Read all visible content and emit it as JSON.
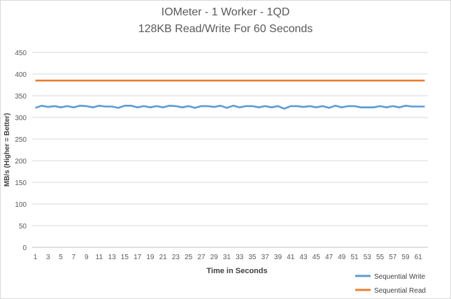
{
  "chart_data": {
    "type": "line",
    "title": "IOMeter - 1 Worker - 1QD",
    "subtitle": "128KB Read/Write For 60 Seconds",
    "xlabel": "Time in Seconds",
    "ylabel": "MB/s (Higher = Better)",
    "ylim": [
      0,
      450
    ],
    "ytick_step": 50,
    "y_ticks": [
      "0",
      "50",
      "100",
      "150",
      "200",
      "250",
      "300",
      "350",
      "400",
      "450"
    ],
    "x_ticks": [
      "1",
      "3",
      "5",
      "7",
      "9",
      "11",
      "13",
      "15",
      "17",
      "19",
      "21",
      "23",
      "25",
      "27",
      "29",
      "31",
      "33",
      "35",
      "37",
      "39",
      "41",
      "43",
      "45",
      "47",
      "49",
      "51",
      "53",
      "55",
      "57",
      "59",
      "61"
    ],
    "grid": true,
    "legend_position": "bottom-right",
    "x": [
      1,
      2,
      3,
      4,
      5,
      6,
      7,
      8,
      9,
      10,
      11,
      12,
      13,
      14,
      15,
      16,
      17,
      18,
      19,
      20,
      21,
      22,
      23,
      24,
      25,
      26,
      27,
      28,
      29,
      30,
      31,
      32,
      33,
      34,
      35,
      36,
      37,
      38,
      39,
      40,
      41,
      42,
      43,
      44,
      45,
      46,
      47,
      48,
      49,
      50,
      51,
      52,
      53,
      54,
      55,
      56,
      57,
      58,
      59,
      60,
      61,
      62
    ],
    "series": [
      {
        "name": "Sequential Write",
        "color": "#5b9bd5",
        "values": [
          322,
          327,
          324,
          326,
          323,
          326,
          323,
          327,
          326,
          323,
          327,
          325,
          325,
          322,
          327,
          327,
          323,
          326,
          323,
          326,
          323,
          327,
          326,
          323,
          326,
          322,
          326,
          326,
          324,
          327,
          322,
          327,
          323,
          326,
          326,
          323,
          326,
          323,
          326,
          320,
          326,
          326,
          324,
          326,
          323,
          326,
          322,
          327,
          323,
          326,
          326,
          323,
          323,
          323,
          326,
          323,
          326,
          323,
          327,
          325,
          325,
          325
        ]
      },
      {
        "name": "Sequential Read",
        "color": "#ed7d31",
        "values": [
          385,
          385,
          385,
          385,
          385,
          385,
          385,
          385,
          385,
          385,
          385,
          385,
          385,
          385,
          385,
          385,
          385,
          385,
          385,
          385,
          385,
          385,
          385,
          385,
          385,
          385,
          385,
          385,
          385,
          385,
          385,
          385,
          385,
          385,
          385,
          385,
          385,
          385,
          385,
          385,
          385,
          385,
          385,
          385,
          385,
          385,
          385,
          385,
          385,
          385,
          385,
          385,
          385,
          385,
          385,
          385,
          385,
          385,
          385,
          385,
          385,
          385
        ]
      }
    ]
  }
}
